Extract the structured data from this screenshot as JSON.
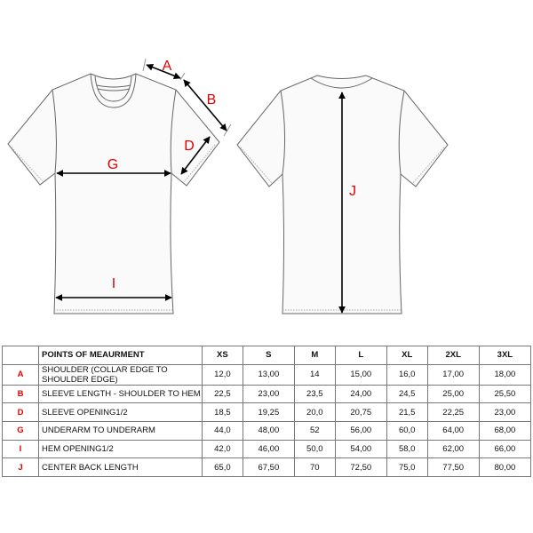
{
  "diagram": {
    "labels": {
      "A": "A",
      "B": "B",
      "D": "D",
      "G": "G",
      "I": "I",
      "J": "J"
    }
  },
  "table": {
    "header": {
      "code": "",
      "point": "POINTS OF MEAURMENT",
      "sizes": [
        "XS",
        "S",
        "M",
        "L",
        "XL",
        "2XL",
        "3XL"
      ]
    },
    "rows": [
      {
        "code": "A",
        "point": "SHOULDER (COLLAR EDGE TO SHOULDER EDGE)",
        "values": [
          "12,0",
          "13,00",
          "14",
          "15,00",
          "16,0",
          "17,00",
          "18,00"
        ]
      },
      {
        "code": "B",
        "point": "SLEEVE LENGTH - SHOULDER TO HEM",
        "values": [
          "22,5",
          "23,00",
          "23,5",
          "24,00",
          "24,5",
          "25,00",
          "25,50"
        ]
      },
      {
        "code": "D",
        "point": "SLEEVE OPENING1/2",
        "values": [
          "18,5",
          "19,25",
          "20,0",
          "20,75",
          "21,5",
          "22,25",
          "23,00"
        ]
      },
      {
        "code": "G",
        "point": "UNDERARM TO UNDERARM",
        "values": [
          "44,0",
          "48,00",
          "52",
          "56,00",
          "60,0",
          "64,00",
          "68,00"
        ]
      },
      {
        "code": "I",
        "point": "HEM OPENING1/2",
        "values": [
          "42,0",
          "46,00",
          "50,0",
          "54,00",
          "58,0",
          "62,00",
          "66,00"
        ]
      },
      {
        "code": "J",
        "point": "CENTER BACK LENGTH",
        "values": [
          "65,0",
          "67,50",
          "70",
          "72,50",
          "75,0",
          "77,50",
          "80,00"
        ]
      }
    ]
  },
  "colors": {
    "label": "#e00000",
    "outline": "#666666"
  }
}
